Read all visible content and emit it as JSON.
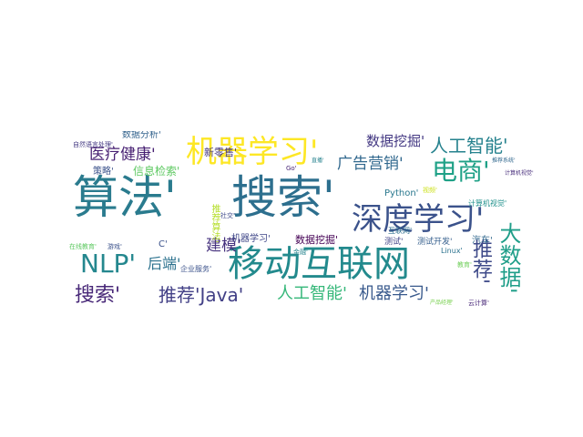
{
  "cloud": {
    "words": [
      {
        "text": "算法'",
        "color": "#2a7b8e"
      },
      {
        "text": "搜索'",
        "color": "#2d6f8e"
      },
      {
        "text": "移动互联网",
        "color": "#238a8d"
      },
      {
        "text": "深度学习'",
        "color": "#3b528b"
      },
      {
        "text": "机器学习'",
        "color": "#fde725"
      },
      {
        "text": "电商'",
        "color": "#1fa187"
      },
      {
        "text": "人工智能'",
        "color": "#26828e"
      },
      {
        "text": "NLP'",
        "color": "#24878e"
      },
      {
        "text": "大数据'",
        "color": "#1f9e89"
      },
      {
        "text": "推荐'",
        "color": "#3e4a89"
      },
      {
        "text": "搜索'",
        "color": "#482878"
      },
      {
        "text": "推荐'Java'",
        "color": "#424086"
      },
      {
        "text": "人工智能'",
        "color": "#35b779"
      },
      {
        "text": "机器学习'",
        "color": "#38598c"
      },
      {
        "text": "医疗健康'",
        "color": "#482173"
      },
      {
        "text": "数据挖掘'",
        "color": "#443983"
      },
      {
        "text": "广告营销'",
        "color": "#31688e"
      },
      {
        "text": "后端'",
        "color": "#2c728e"
      },
      {
        "text": "建模'",
        "color": "#46327e"
      },
      {
        "text": "数据分析'",
        "color": "#33638d"
      },
      {
        "text": "策略'",
        "color": "#3b528b"
      },
      {
        "text": "信息检索'",
        "color": "#5ec962"
      },
      {
        "text": "新零售'",
        "color": "#453781"
      },
      {
        "text": "机器学习'",
        "color": "#3f4788"
      },
      {
        "text": "数据挖掘'",
        "color": "#440154"
      },
      {
        "text": "Python'",
        "color": "#2a788e"
      },
      {
        "text": "C'",
        "color": "#3b528b"
      },
      {
        "text": "推荐算法'",
        "color": "#b5de2b"
      },
      {
        "text": "汽车'",
        "color": "#31688e"
      },
      {
        "text": "测试'",
        "color": "#414487"
      },
      {
        "text": "测试开发'",
        "color": "#355f8d"
      },
      {
        "text": "互联网'",
        "color": "#2e6e8e"
      },
      {
        "text": "计算机视觉'",
        "color": "#21918c"
      },
      {
        "text": "企业服务'",
        "color": "#3b528b"
      },
      {
        "text": "Linux'",
        "color": "#2c728e"
      },
      {
        "text": "在线教育'",
        "color": "#5ec962"
      },
      {
        "text": "云计算'",
        "color": "#482878"
      },
      {
        "text": "教育'",
        "color": "#6ece58"
      },
      {
        "text": "社交'",
        "color": "#3e4a89"
      },
      {
        "text": "金融'",
        "color": "#25848e"
      },
      {
        "text": "产品经理'",
        "color": "#7ad151"
      },
      {
        "text": "游戏'",
        "color": "#3b528b"
      },
      {
        "text": "推荐系统'",
        "color": "#31688e"
      },
      {
        "text": "视频'",
        "color": "#cde11d"
      },
      {
        "text": "Go'",
        "color": "#482475"
      },
      {
        "text": "计算机视觉'",
        "color": "#472d7b"
      },
      {
        "text": "直播'",
        "color": "#26828e"
      },
      {
        "text": "自然语言处理'",
        "color": "#443a83"
      }
    ]
  }
}
